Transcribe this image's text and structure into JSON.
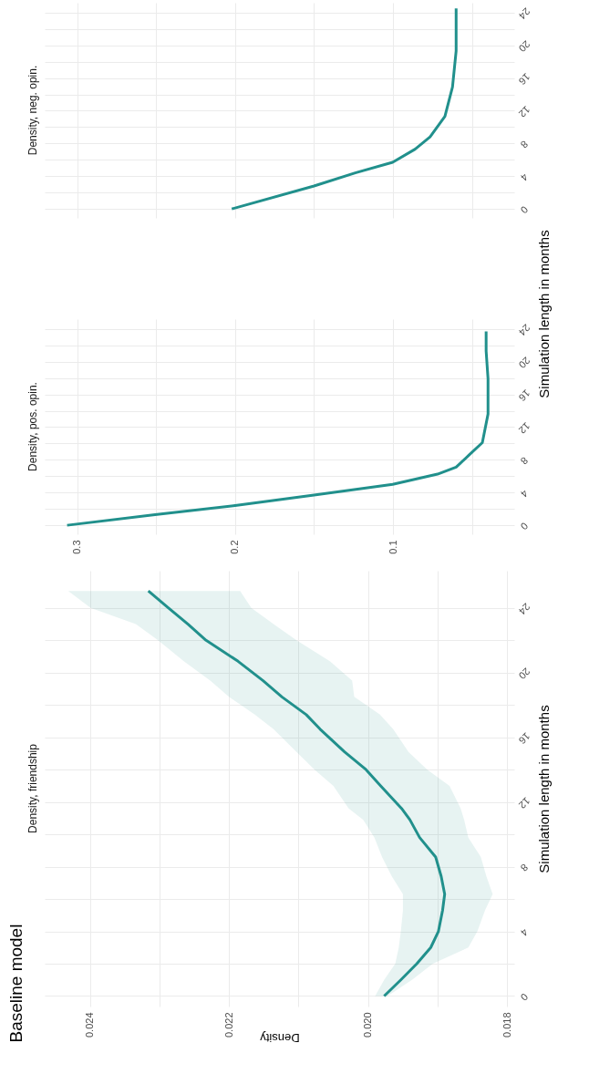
{
  "chart_data": [
    {
      "type": "line",
      "orientation": "horizontal",
      "title": "Baseline model",
      "subtitle": "Density, friendship",
      "ylabel": "Simulation length in months",
      "xlabel": "Density",
      "grid": true,
      "ylim": [
        -0.65,
        26.3
      ],
      "yticks": [
        0,
        {
          "value": 2,
          "label": null
        },
        4,
        {
          "value": 6,
          "label": null
        },
        8,
        {
          "value": 10,
          "label": null
        },
        12,
        {
          "value": 14,
          "label": null
        },
        16,
        {
          "value": 18,
          "label": null
        },
        20,
        {
          "value": 22,
          "label": null
        },
        24
      ],
      "xlim": [
        0.02465,
        0.0179
      ],
      "xticks": [
        0.018,
        {
          "value": 0.019,
          "label": null
        },
        {
          "value": 0.02,
          "label": "0.020"
        },
        {
          "value": 0.021,
          "label": null
        },
        0.022,
        {
          "value": 0.023,
          "label": null
        },
        0.024
      ],
      "series": [
        {
          "color": "#21908c",
          "x": [
            0,
            1,
            2,
            3,
            4,
            5.3,
            6.3,
            7.4,
            8.6,
            9.8,
            10.9,
            11.6,
            13,
            14,
            15.1,
            16.5,
            17.4,
            18.5,
            19.5,
            20.7,
            22,
            23,
            24,
            25.05
          ],
          "values": [
            0.01977,
            0.01953,
            0.0193,
            0.0191,
            0.01899,
            0.01893,
            0.0189,
            0.01895,
            0.01903,
            0.01926,
            0.0194,
            0.01952,
            0.01982,
            0.02003,
            0.02034,
            0.02069,
            0.02089,
            0.02124,
            0.02151,
            0.02187,
            0.02233,
            0.02259,
            0.02287,
            0.02316
          ],
          "lower": [
            0.01972,
            0.01937,
            0.01907,
            0.01856,
            0.01843,
            0.01832,
            0.01821,
            0.0183,
            0.01838,
            0.01856,
            0.01862,
            0.01867,
            0.01883,
            0.01915,
            0.01942,
            0.01964,
            0.01983,
            0.0202,
            0.02023,
            0.02055,
            0.02103,
            0.02136,
            0.02168,
            0.02184
          ],
          "upper": [
            0.0199,
            0.01977,
            0.01961,
            0.01956,
            0.01953,
            0.0195,
            0.0195,
            0.01966,
            0.0198,
            0.01991,
            0.02007,
            0.02028,
            0.0205,
            0.02077,
            0.02103,
            0.02136,
            0.02163,
            0.022,
            0.02227,
            0.02265,
            0.02302,
            0.02334,
            0.02399,
            0.02431
          ]
        }
      ]
    },
    {
      "type": "line",
      "orientation": "horizontal",
      "title": "Density, pos. opin.",
      "ylabel": "Simulation length in months",
      "grid": true,
      "ylim": [
        -1.1,
        25.2
      ],
      "yticks": [
        0,
        {
          "value": 2,
          "label": null
        },
        4,
        {
          "value": 6,
          "label": null
        },
        8,
        {
          "value": 10,
          "label": null
        },
        12,
        {
          "value": 14,
          "label": null
        },
        16,
        {
          "value": 18,
          "label": null
        },
        20,
        {
          "value": 22,
          "label": null
        },
        24
      ],
      "xlim": [
        0.3206,
        0.0232
      ],
      "xticks": [
        {
          "value": 0.05,
          "label": null
        },
        0.1,
        {
          "value": 0.15,
          "label": null
        },
        0.2,
        {
          "value": 0.25,
          "label": null
        },
        0.3
      ],
      "series": [
        {
          "color": "#21908c",
          "x": [
            0,
            1.3,
            2.4,
            3.7,
            5,
            6.25,
            7.1,
            8.6,
            10.1,
            13.6,
            17.9,
            21.3,
            23.7
          ],
          "values": [
            0.3064,
            0.2507,
            0.2,
            0.15,
            0.1002,
            0.0718,
            0.06,
            0.0517,
            0.0434,
            0.0398,
            0.0398,
            0.041,
            0.041
          ]
        }
      ]
    },
    {
      "type": "line",
      "orientation": "horizontal",
      "title": "Density, neg. opin.",
      "grid": true,
      "tick_labels": "y",
      "ylim": [
        -1.1,
        25.2
      ],
      "yticks": [
        0,
        {
          "value": 2,
          "label": null
        },
        4,
        {
          "value": 6,
          "label": null
        },
        8,
        {
          "value": 10,
          "label": null
        },
        12,
        {
          "value": 14,
          "label": null
        },
        16,
        {
          "value": 18,
          "label": null
        },
        20,
        {
          "value": 22,
          "label": null
        },
        24
      ],
      "xlim": [
        0.3206,
        0.0232
      ],
      "xticks": [
        {
          "value": 0.05,
          "label": null
        },
        0.1,
        {
          "value": 0.15,
          "label": null
        },
        0.2,
        {
          "value": 0.25,
          "label": null
        },
        0.3
      ],
      "series": [
        {
          "color": "#21908c",
          "x": [
            0,
            2.8,
            4.4,
            5.7,
            7.3,
            8.8,
            11.3,
            14.9,
            19.3,
            24.5
          ],
          "values": [
            0.2021,
            0.15,
            0.1239,
            0.1002,
            0.086,
            0.0765,
            0.0671,
            0.0623,
            0.06,
            0.06
          ]
        }
      ]
    }
  ]
}
